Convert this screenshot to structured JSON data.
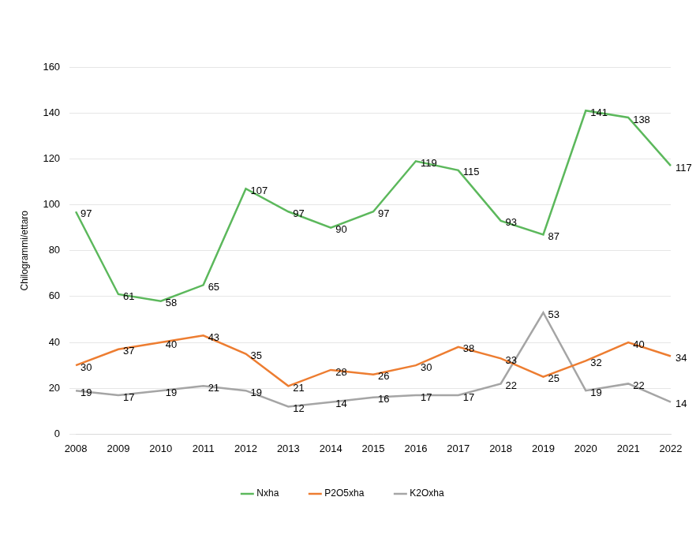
{
  "chart_data": {
    "type": "line",
    "y_label": "Chilogrammi/ettaro",
    "categories": [
      "2008",
      "2009",
      "2010",
      "2011",
      "2012",
      "2013",
      "2014",
      "2015",
      "2016",
      "2017",
      "2018",
      "2019",
      "2020",
      "2021",
      "2022"
    ],
    "series": [
      {
        "name": "Nxha",
        "color": "#5cb85c",
        "values": [
          97,
          61,
          58,
          65,
          107,
          97,
          90,
          97,
          119,
          115,
          93,
          87,
          141,
          138,
          117
        ]
      },
      {
        "name": "P2O5xha",
        "color": "#ed7d31",
        "values": [
          30,
          37,
          40,
          43,
          35,
          21,
          28,
          26,
          30,
          38,
          33,
          25,
          32,
          40,
          34
        ]
      },
      {
        "name": "K2Oxha",
        "color": "#a5a5a5",
        "values": [
          19,
          17,
          19,
          21,
          19,
          12,
          14,
          16,
          17,
          17,
          22,
          53,
          19,
          22,
          14
        ]
      }
    ],
    "ylim": [
      0,
      160
    ],
    "yticks": [
      0,
      20,
      40,
      60,
      80,
      100,
      120,
      140,
      160
    ],
    "grid": true,
    "legend": "bottom",
    "data_labels": true
  }
}
